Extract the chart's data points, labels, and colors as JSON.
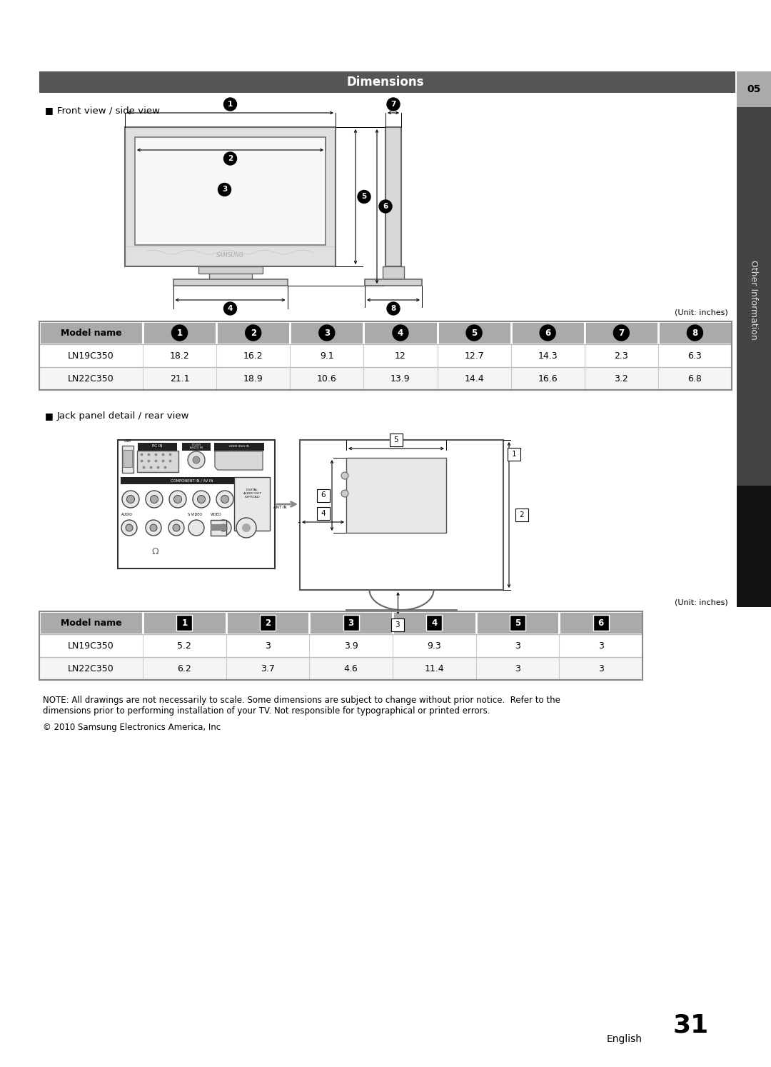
{
  "title": "Dimensions",
  "section1_title": "Front view / side view",
  "section2_title": "Jack panel detail / rear view",
  "table1_header": [
    "Model name",
    "1",
    "2",
    "3",
    "4",
    "5",
    "6",
    "7",
    "8"
  ],
  "table1_data": [
    [
      "LN19C350",
      "18.2",
      "16.2",
      "9.1",
      "12",
      "12.7",
      "14.3",
      "2.3",
      "6.3"
    ],
    [
      "LN22C350",
      "21.1",
      "18.9",
      "10.6",
      "13.9",
      "14.4",
      "16.6",
      "3.2",
      "6.8"
    ]
  ],
  "table2_header": [
    "Model name",
    "1",
    "2",
    "3",
    "4",
    "5",
    "6"
  ],
  "table2_data": [
    [
      "LN19C350",
      "5.2",
      "3",
      "3.9",
      "9.3",
      "3",
      "3"
    ],
    [
      "LN22C350",
      "6.2",
      "3.7",
      "4.6",
      "11.4",
      "3",
      "3"
    ]
  ],
  "unit_label": "(Unit: inches)",
  "note_text": "NOTE: All drawings are not necessarily to scale. Some dimensions are subject to change without prior notice.  Refer to the\ndimensions prior to performing installation of your TV. Not responsible for typographical or printed errors.",
  "copyright_text": "© 2010 Samsung Electronics America, Inc",
  "page_number": "31",
  "english_label": "English",
  "header_bg": "#555555",
  "sidebar_dark": "#444444",
  "sidebar_black": "#111111",
  "table_header_bg": "#aaaaaa",
  "table_row_alt": "#f5f5f5"
}
